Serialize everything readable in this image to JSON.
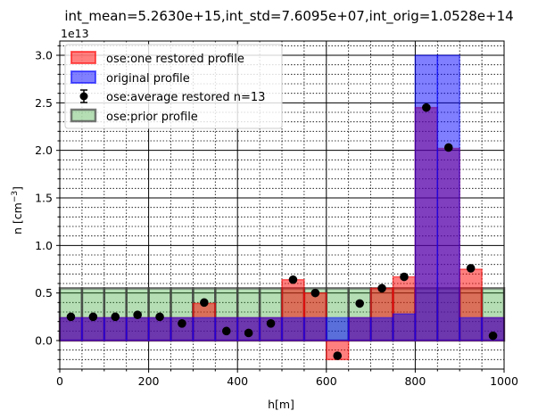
{
  "chart_data": {
    "type": "bar",
    "title": "int_mean=5.2630e+15,int_std=7.6095e+07,int_orig=1.0528e+14",
    "xlabel": "h[m]",
    "ylabel": "n [cm^-3]",
    "ylabel_main": "n [cm",
    "ylabel_sup": "−3",
    "ylabel_end": "]",
    "y_offset_text": "1e13",
    "xlim": [
      0,
      1000
    ],
    "ylim": [
      -0.3,
      3.15
    ],
    "y_scale": 10000000000000.0,
    "x_ticks": [
      0,
      200,
      400,
      600,
      800,
      1000
    ],
    "y_ticks": [
      0.0,
      0.5,
      1.0,
      1.5,
      2.0,
      2.5,
      3.0
    ],
    "x_tick_labels": [
      "0",
      "200",
      "400",
      "600",
      "800",
      "1000"
    ],
    "y_tick_labels": [
      "0.0",
      "0.5",
      "1.0",
      "1.5",
      "2.0",
      "2.5",
      "3.0"
    ],
    "grid": true,
    "legend_position": "top-left",
    "bin_edges": [
      0,
      50,
      100,
      150,
      200,
      250,
      300,
      350,
      400,
      450,
      500,
      550,
      600,
      650,
      700,
      750,
      800,
      850,
      900,
      950,
      1000
    ],
    "series": [
      {
        "name": "ose:prior profile",
        "kind": "bar",
        "color": "#2ca02c",
        "values": [
          0.55,
          0.55,
          0.55,
          0.55,
          0.55,
          0.55,
          0.55,
          0.55,
          0.55,
          0.55,
          0.55,
          0.55,
          0.55,
          0.55,
          0.55,
          0.55,
          0.55,
          0.55,
          0.55,
          0.55
        ]
      },
      {
        "name": "ose:one restored profile",
        "kind": "bar",
        "color": "#ff0000",
        "values": [
          0.24,
          0.24,
          0.24,
          0.24,
          0.24,
          0.24,
          0.39,
          0.24,
          0.24,
          0.24,
          0.64,
          0.5,
          -0.2,
          0.24,
          0.55,
          0.67,
          2.45,
          2.02,
          0.75,
          0.24
        ]
      },
      {
        "name": "original profile",
        "kind": "bar",
        "color": "#0000ff",
        "values": [
          0.24,
          0.24,
          0.24,
          0.24,
          0.24,
          0.24,
          0.24,
          0.24,
          0.24,
          0.24,
          0.24,
          0.24,
          0.24,
          0.24,
          0.24,
          0.28,
          3.0,
          3.0,
          0.24,
          0.24
        ]
      },
      {
        "name": "ose:average restored n=13",
        "kind": "errorbar",
        "color": "#000000",
        "x": [
          25,
          75,
          125,
          175,
          225,
          275,
          325,
          375,
          425,
          475,
          525,
          575,
          625,
          675,
          725,
          775,
          825,
          875,
          925,
          975
        ],
        "values": [
          0.25,
          0.25,
          0.25,
          0.27,
          0.25,
          0.18,
          0.4,
          0.1,
          0.08,
          0.18,
          0.64,
          0.5,
          -0.16,
          0.39,
          0.55,
          0.67,
          2.45,
          2.03,
          0.76,
          0.05
        ]
      }
    ]
  }
}
